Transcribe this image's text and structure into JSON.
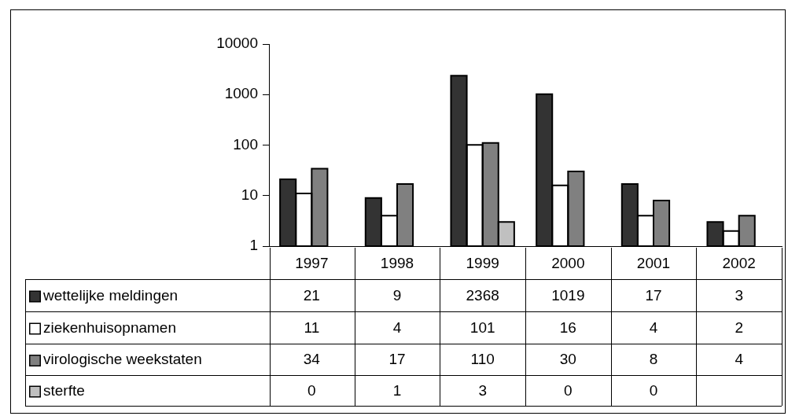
{
  "chart_data": {
    "type": "bar",
    "categories": [
      "1997",
      "1998",
      "1999",
      "2000",
      "2001",
      "2002"
    ],
    "series": [
      {
        "name": "wettelijke meldingen",
        "color": "#333333",
        "values": [
          21,
          9,
          2368,
          1019,
          17,
          3
        ]
      },
      {
        "name": "ziekenhuisopnamen",
        "color": "#ffffff",
        "values": [
          11,
          4,
          101,
          16,
          4,
          2
        ]
      },
      {
        "name": "virologische weekstaten",
        "color": "#808080",
        "values": [
          34,
          17,
          110,
          30,
          8,
          4
        ]
      },
      {
        "name": "sterfte",
        "color": "#c0c0c0",
        "values": [
          null,
          1,
          3,
          null,
          null,
          null
        ],
        "value_labels": [
          "0",
          "1",
          "3",
          "0",
          "0",
          null
        ]
      }
    ],
    "log": true,
    "ylim": [
      1,
      10000
    ],
    "yticks": [
      1,
      10,
      100,
      1000,
      10000
    ],
    "grid": false,
    "legend": "bottom",
    "data_labels": true
  }
}
